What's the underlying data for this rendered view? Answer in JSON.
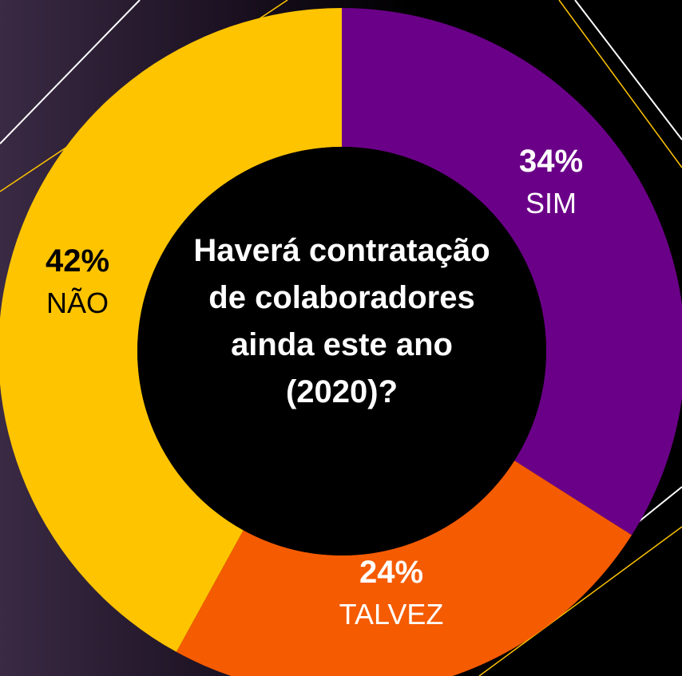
{
  "chart_data": {
    "type": "donut",
    "title": "Haverá contratação de colaboradores ainda este ano (2020)?",
    "categories": [
      "SIM",
      "TALVEZ",
      "NÃO"
    ],
    "values": [
      34,
      24,
      42
    ],
    "value_labels": [
      "34%",
      "24%",
      "42%"
    ],
    "colors": [
      "#6b0088",
      "#f55b00",
      "#ffc400"
    ]
  }
}
